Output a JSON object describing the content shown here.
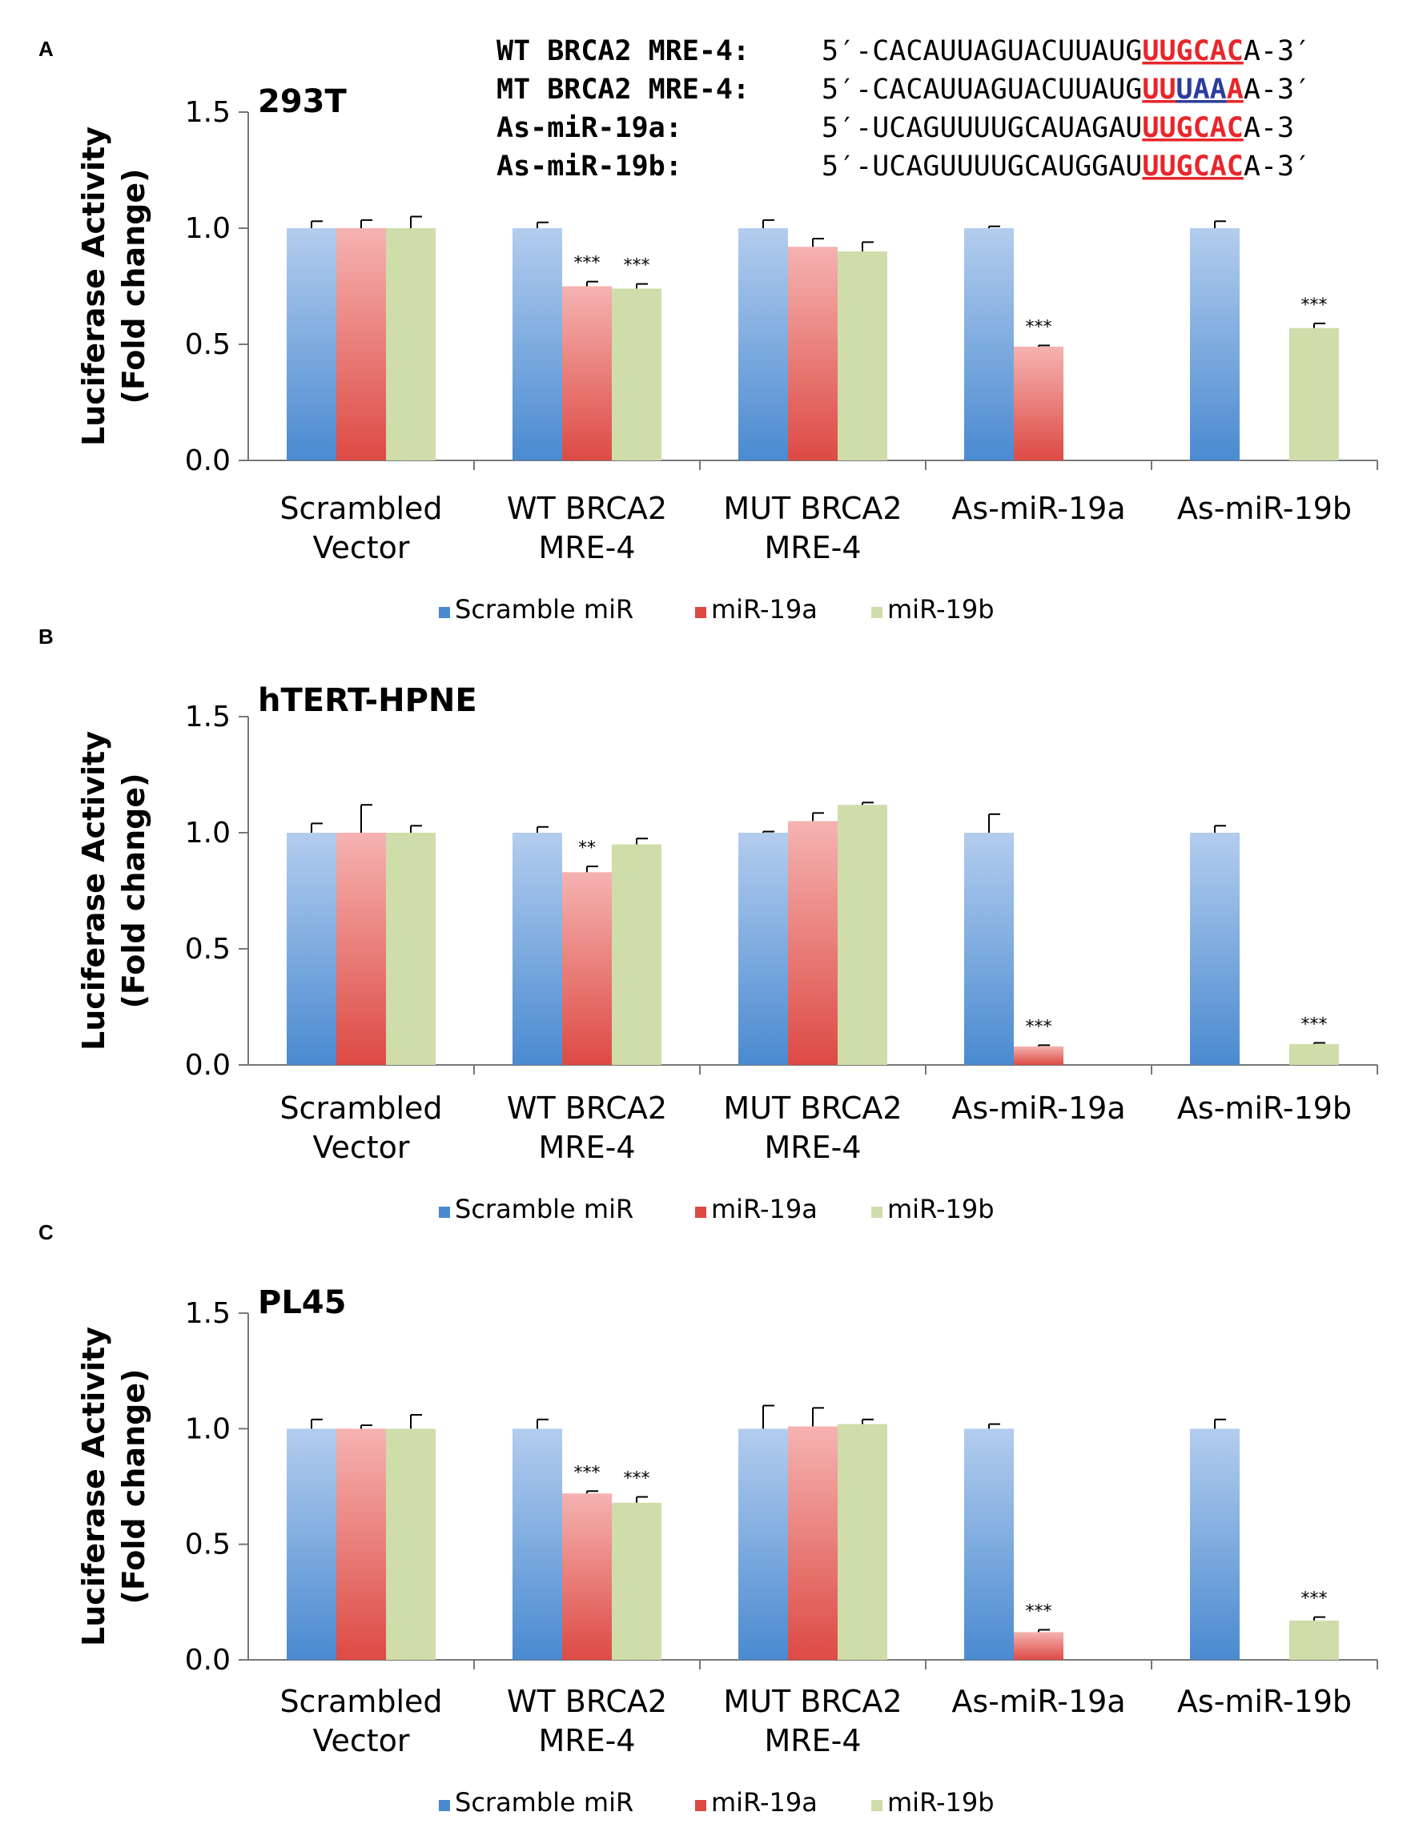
{
  "sequences": [
    {
      "name": "WT BRCA2 MRE-4:",
      "prefix": "5′-CACAUUAGUACUUAUG",
      "segments": [
        {
          "t": "UUGCAC",
          "c": "red"
        }
      ],
      "suffix": "A-3′"
    },
    {
      "name": "MT BRCA2 MRE-4:",
      "prefix": "5′-CACAUUAGUACUUAUG",
      "segments": [
        {
          "t": "UU",
          "c": "red"
        },
        {
          "t": "UAA",
          "c": "blue"
        },
        {
          "t": "A",
          "c": "red"
        }
      ],
      "suffix": "A-3′"
    },
    {
      "name": "As-miR-19a:",
      "prefix": "5′-UCAGUUUUGCAUAGAU",
      "segments": [
        {
          "t": "UUGCAC",
          "c": "red"
        }
      ],
      "suffix": "A-3"
    },
    {
      "name": "As-miR-19b:",
      "prefix": "5′-UCAGUUUUGCAUGGAU",
      "segments": [
        {
          "t": "UUGCAC",
          "c": "red"
        }
      ],
      "suffix": "A-3′"
    }
  ],
  "colors": {
    "scramble_top": "#b3cdee",
    "scramble_bottom": "#4a8ad0",
    "mir19a_top": "#f5b3b1",
    "mir19a_bottom": "#dd4a44",
    "mir19b": "#cfddaa",
    "seq_red": "#e8262b",
    "seq_blue": "#2c3c9c"
  },
  "chart_data": [
    {
      "panel": "A",
      "type": "bar",
      "title": "293T",
      "ylabel_line1": "Luciferase Activity",
      "ylabel_line2": "(Fold change)",
      "ylim": [
        0,
        1.5
      ],
      "yticks": [
        "0.0",
        "0.5",
        "1.0",
        "1.5"
      ],
      "categories": [
        [
          "Scrambled",
          "Vector"
        ],
        [
          "WT BRCA2",
          "MRE-4"
        ],
        [
          "MUT BRCA2",
          "MRE-4"
        ],
        [
          "As-miR-19a"
        ],
        [
          "As-miR-19b"
        ]
      ],
      "series": [
        {
          "name": "Scramble miR",
          "values": [
            1.0,
            1.0,
            1.0,
            1.0,
            1.0
          ],
          "errors": [
            0.03,
            0.025,
            0.035,
            0.008,
            0.03
          ]
        },
        {
          "name": "miR-19a",
          "values": [
            1.0,
            0.75,
            0.92,
            0.49,
            null
          ],
          "errors": [
            0.035,
            0.02,
            0.035,
            0.005,
            null
          ]
        },
        {
          "name": "miR-19b",
          "values": [
            1.0,
            0.74,
            0.9,
            null,
            0.57
          ],
          "errors": [
            0.05,
            0.02,
            0.04,
            null,
            0.02
          ]
        }
      ],
      "significance": [
        {
          "category": 1,
          "series": 1,
          "label": "***"
        },
        {
          "category": 1,
          "series": 2,
          "label": "***"
        },
        {
          "category": 3,
          "series": 1,
          "label": "***"
        },
        {
          "category": 4,
          "series": 2,
          "label": "***"
        }
      ],
      "legend": [
        "Scramble miR",
        "miR-19a",
        "miR-19b"
      ]
    },
    {
      "panel": "B",
      "type": "bar",
      "title": "hTERT-HPNE",
      "ylabel_line1": "Luciferase Activity",
      "ylabel_line2": "(Fold change)",
      "ylim": [
        0,
        1.5
      ],
      "yticks": [
        "0.0",
        "0.5",
        "1.0",
        "1.5"
      ],
      "categories": [
        [
          "Scrambled",
          "Vector"
        ],
        [
          "WT BRCA2",
          "MRE-4"
        ],
        [
          "MUT BRCA2",
          "MRE-4"
        ],
        [
          "As-miR-19a"
        ],
        [
          "As-miR-19b"
        ]
      ],
      "series": [
        {
          "name": "Scramble miR",
          "values": [
            1.0,
            1.0,
            1.0,
            1.0,
            1.0
          ],
          "errors": [
            0.04,
            0.025,
            0.005,
            0.08,
            0.03
          ]
        },
        {
          "name": "miR-19a",
          "values": [
            1.0,
            0.83,
            1.05,
            0.08,
            null
          ],
          "errors": [
            0.12,
            0.025,
            0.035,
            0.005,
            null
          ]
        },
        {
          "name": "miR-19b",
          "values": [
            1.0,
            0.95,
            1.12,
            null,
            0.09
          ],
          "errors": [
            0.03,
            0.025,
            0.01,
            null,
            0.005
          ]
        }
      ],
      "significance": [
        {
          "category": 1,
          "series": 1,
          "label": "**"
        },
        {
          "category": 3,
          "series": 1,
          "label": "***"
        },
        {
          "category": 4,
          "series": 2,
          "label": "***"
        }
      ],
      "legend": [
        "Scramble miR",
        "miR-19a",
        "miR-19b"
      ]
    },
    {
      "panel": "C",
      "type": "bar",
      "title": "PL45",
      "ylabel_line1": "Luciferase Activity",
      "ylabel_line2": "(Fold change)",
      "ylim": [
        0,
        1.5
      ],
      "yticks": [
        "0.0",
        "0.5",
        "1.0",
        "1.5"
      ],
      "categories": [
        [
          "Scrambled",
          "Vector"
        ],
        [
          "WT BRCA2",
          "MRE-4"
        ],
        [
          "MUT BRCA2",
          "MRE-4"
        ],
        [
          "As-miR-19a"
        ],
        [
          "As-miR-19b"
        ]
      ],
      "series": [
        {
          "name": "Scramble miR",
          "values": [
            1.0,
            1.0,
            1.0,
            1.0,
            1.0
          ],
          "errors": [
            0.04,
            0.04,
            0.1,
            0.02,
            0.04
          ]
        },
        {
          "name": "miR-19a",
          "values": [
            1.0,
            0.72,
            1.01,
            0.12,
            null
          ],
          "errors": [
            0.015,
            0.01,
            0.08,
            0.01,
            null
          ]
        },
        {
          "name": "miR-19b",
          "values": [
            1.0,
            0.68,
            1.02,
            null,
            0.17
          ],
          "errors": [
            0.06,
            0.025,
            0.02,
            null,
            0.015
          ]
        }
      ],
      "significance": [
        {
          "category": 1,
          "series": 1,
          "label": "***"
        },
        {
          "category": 1,
          "series": 2,
          "label": "***"
        },
        {
          "category": 3,
          "series": 1,
          "label": "***"
        },
        {
          "category": 4,
          "series": 2,
          "label": "***"
        }
      ],
      "legend": [
        "Scramble miR",
        "miR-19a",
        "miR-19b"
      ]
    }
  ]
}
